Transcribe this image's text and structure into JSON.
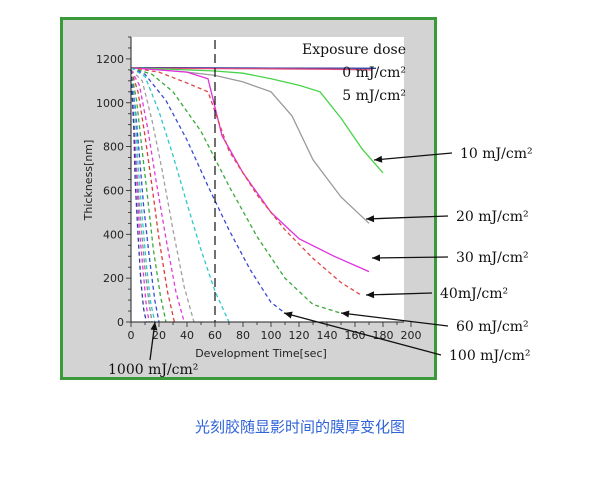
{
  "caption": "光刻胶随显影时间的膜厚变化图",
  "chart_data": {
    "type": "line",
    "xlabel": "Development Time[sec]",
    "ylabel": "Thickness[nm]",
    "xlim": [
      0,
      200
    ],
    "ylim": [
      0,
      1300
    ],
    "xticks": [
      0,
      20,
      40,
      60,
      80,
      100,
      120,
      140,
      160,
      180,
      200
    ],
    "yticks": [
      0,
      200,
      400,
      600,
      800,
      1000,
      1200
    ],
    "grid": false,
    "reference_line_x": 60,
    "legend_title": "Exposure dose",
    "series": [
      {
        "name": "0 mJ/cm²",
        "color": "#2c3c9c",
        "style": "solid",
        "x": [
          0,
          30,
          60,
          100,
          140,
          175
        ],
        "y": [
          1160,
          1160,
          1159,
          1158,
          1158,
          1157
        ]
      },
      {
        "name": "5 mJ/cm²",
        "color": "#e0477d",
        "style": "solid",
        "x": [
          0,
          30,
          60,
          100,
          140,
          172
        ],
        "y": [
          1158,
          1157,
          1156,
          1155,
          1153,
          1150
        ]
      },
      {
        "name": "10 mJ/cm²",
        "color": "#48d448",
        "style": "solid",
        "x": [
          0,
          20,
          40,
          60,
          80,
          100,
          120,
          135,
          150,
          165,
          180
        ],
        "y": [
          1160,
          1155,
          1150,
          1145,
          1135,
          1110,
          1080,
          1050,
          930,
          790,
          680
        ]
      },
      {
        "name": "20 mJ/cm²",
        "color": "#9a9a9a",
        "style": "solid",
        "x": [
          0,
          20,
          40,
          60,
          80,
          100,
          115,
          130,
          150,
          170
        ],
        "y": [
          1160,
          1150,
          1140,
          1125,
          1095,
          1050,
          940,
          740,
          570,
          450
        ]
      },
      {
        "name": "30 mJ/cm²",
        "color": "#e12fe1",
        "style": "solid",
        "x": [
          0,
          20,
          40,
          55,
          65,
          80,
          100,
          120,
          145,
          170
        ],
        "y": [
          1160,
          1150,
          1140,
          1110,
          850,
          680,
          500,
          380,
          300,
          230
        ]
      },
      {
        "name": "40mJ/cm²",
        "color": "#e04646",
        "style": "dashed",
        "x": [
          0,
          20,
          40,
          55,
          70,
          90,
          110,
          130,
          150,
          165
        ],
        "y": [
          1160,
          1140,
          1090,
          1050,
          780,
          580,
          420,
          290,
          180,
          120
        ]
      },
      {
        "name": "60 mJ/cm²",
        "color": "#3aa83a",
        "style": "dashed",
        "x": [
          0,
          15,
          30,
          50,
          70,
          90,
          110,
          130,
          150
        ],
        "y": [
          1160,
          1130,
          1050,
          870,
          620,
          390,
          200,
          80,
          40
        ]
      },
      {
        "name": "100 mJ/cm²",
        "color": "#3a4ad0",
        "style": "dashed",
        "x": [
          0,
          10,
          25,
          40,
          55,
          70,
          85,
          100,
          110
        ],
        "y": [
          1160,
          1130,
          1010,
          830,
          620,
          420,
          240,
          90,
          40
        ]
      },
      {
        "name": "",
        "color": "#2ec8c8",
        "style": "dashed",
        "x": [
          0,
          10,
          20,
          30,
          40,
          50,
          60,
          70
        ],
        "y": [
          1160,
          1120,
          960,
          760,
          540,
          330,
          140,
          0
        ]
      },
      {
        "name": "",
        "color": "#a0a0a0",
        "style": "dashed",
        "x": [
          0,
          8,
          15,
          22,
          30,
          38,
          45
        ],
        "y": [
          1150,
          1100,
          920,
          700,
          420,
          160,
          0
        ]
      },
      {
        "name": "",
        "color": "#e03ae0",
        "style": "dashed",
        "x": [
          0,
          6,
          12,
          18,
          25,
          32,
          38
        ],
        "y": [
          1150,
          1080,
          880,
          640,
          380,
          140,
          0
        ]
      },
      {
        "name": "",
        "color": "#e03a3a",
        "style": "dashed",
        "x": [
          0,
          5,
          10,
          15,
          20,
          26,
          31
        ],
        "y": [
          1150,
          1050,
          850,
          620,
          380,
          140,
          0
        ]
      },
      {
        "name": "",
        "color": "#3aa83a",
        "style": "dashed",
        "x": [
          0,
          4,
          8,
          12,
          16,
          21,
          25
        ],
        "y": [
          1150,
          1010,
          780,
          560,
          330,
          120,
          0
        ]
      },
      {
        "name": "",
        "color": "#3a4ad0",
        "style": "dashed",
        "x": [
          0,
          3,
          6,
          9,
          13,
          17,
          20
        ],
        "y": [
          1150,
          980,
          760,
          530,
          300,
          100,
          0
        ]
      },
      {
        "name": "",
        "color": "#2ec8c8",
        "style": "dashed",
        "x": [
          0,
          3,
          5,
          8,
          11,
          14,
          17
        ],
        "y": [
          1150,
          950,
          720,
          480,
          260,
          90,
          0
        ]
      },
      {
        "name": "",
        "color": "#888888",
        "style": "dashed",
        "x": [
          0,
          2,
          4,
          7,
          10,
          13,
          15
        ],
        "y": [
          1150,
          930,
          700,
          450,
          240,
          80,
          0
        ]
      },
      {
        "name": "",
        "color": "#e03ae0",
        "style": "dashed",
        "x": [
          0,
          2,
          4,
          6,
          9,
          11,
          13
        ],
        "y": [
          1150,
          900,
          660,
          420,
          210,
          70,
          0
        ]
      },
      {
        "name": "1000 mJ/cm²",
        "color": "#2c3c9c",
        "style": "dashed",
        "x": [
          0,
          2,
          3,
          5,
          7,
          9,
          11
        ],
        "y": [
          1150,
          880,
          640,
          400,
          190,
          60,
          0
        ]
      }
    ],
    "annotations": [
      {
        "text": "10 mJ/cm²",
        "x": 174,
        "y": 790
      },
      {
        "text": "20 mJ/cm²",
        "x": 168,
        "y": 510
      },
      {
        "text": "30 mJ/cm²",
        "x": 168,
        "y": 290
      },
      {
        "text": "40mJ/cm²",
        "x": 162,
        "y": 130
      },
      {
        "text": "60 mJ/cm²",
        "x": 148,
        "y": 60
      },
      {
        "text": "100 mJ/cm²",
        "x": 108,
        "y": 55
      },
      {
        "text": "1000 mJ/cm²",
        "x": 15,
        "y": 30
      }
    ]
  }
}
